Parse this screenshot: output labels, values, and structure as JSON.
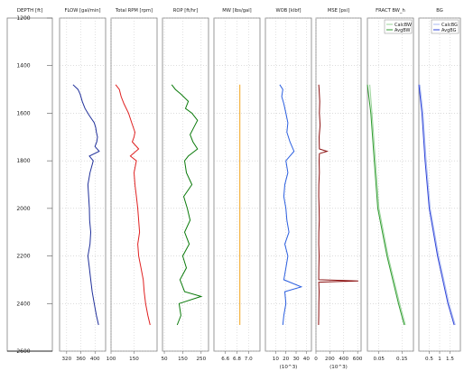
{
  "chart_data": {
    "type": "line",
    "depth_axis": {
      "label": "DEPTH [ft]",
      "range": [
        1200,
        2600
      ],
      "ticks": [
        "1200",
        "1400",
        "1600",
        "1800",
        "2000",
        "2200",
        "2400",
        "2600"
      ],
      "tick_values": [
        1200,
        1400,
        1600,
        1800,
        2000,
        2200,
        2400,
        2600
      ],
      "inverted": true
    },
    "tracks": [
      {
        "title": "FLOW [gal/min]",
        "color": "#1f2f9a",
        "xlim": [
          300,
          430
        ],
        "tick_labels": [
          "320",
          "360",
          "400"
        ],
        "tick_values": [
          320,
          360,
          400
        ],
        "series": [
          {
            "depth": [
              1480,
              1500,
              1520,
              1550,
              1580,
              1610,
              1640,
              1660,
              1680,
              1700,
              1720,
              1740,
              1760,
              1780,
              1800,
              1850,
              1900,
              1950,
              2000,
              2050,
              2100,
              2150,
              2200,
              2250,
              2300,
              2350,
              2400,
              2450,
              2490
            ],
            "values": [
              338,
              352,
              358,
              364,
              372,
              384,
              398,
              402,
              404,
              407,
              405,
              400,
              412,
              384,
              395,
              386,
              380,
              382,
              384,
              385,
              388,
              386,
              380,
              384,
              388,
              392,
              398,
              404,
              410
            ]
          }
        ]
      },
      {
        "title": "Total RPM [rpm]",
        "color": "#e02020",
        "xlim": [
          100,
          200
        ],
        "tick_labels": [
          "100",
          "150"
        ],
        "tick_values": [
          100,
          150
        ],
        "series": [
          {
            "depth": [
              1480,
              1500,
              1530,
              1560,
              1600,
              1640,
              1680,
              1700,
              1720,
              1750,
              1780,
              1800,
              1850,
              1900,
              1950,
              2000,
              2050,
              2100,
              2150,
              2200,
              2250,
              2300,
              2350,
              2400,
              2450,
              2490
            ],
            "values": [
              110,
              118,
              122,
              128,
              138,
              145,
              152,
              150,
              146,
              160,
              142,
              155,
              150,
              152,
              155,
              158,
              160,
              162,
              158,
              160,
              165,
              170,
              172,
              175,
              180,
              185
            ]
          }
        ]
      },
      {
        "title": "ROP [ft/hr]",
        "color": "#0a7a0a",
        "xlim": [
          40,
          290
        ],
        "tick_labels": [
          "50",
          "150",
          "250"
        ],
        "tick_values": [
          50,
          150,
          250
        ],
        "series": [
          {
            "depth": [
              1480,
              1500,
              1520,
              1550,
              1580,
              1600,
              1630,
              1660,
              1690,
              1720,
              1750,
              1780,
              1800,
              1850,
              1900,
              1950,
              2000,
              2050,
              2100,
              2150,
              2200,
              2250,
              2300,
              2350,
              2370,
              2400,
              2450,
              2490
            ],
            "values": [
              90,
              110,
              140,
              180,
              165,
              200,
              230,
              210,
              190,
              205,
              230,
              180,
              160,
              170,
              200,
              155,
              175,
              190,
              160,
              185,
              150,
              170,
              135,
              160,
              250,
              130,
              140,
              120
            ]
          }
        ]
      },
      {
        "title": "MW [lbs/gal]",
        "color": "#f2a31a",
        "xlim": [
          6.4,
          7.2
        ],
        "tick_labels": [
          "6.6",
          "6.8",
          "7.0"
        ],
        "tick_values": [
          6.6,
          6.8,
          7.0
        ],
        "series": [
          {
            "depth": [
              1480,
              2490
            ],
            "values": [
              6.85,
              6.85
            ]
          }
        ]
      },
      {
        "title": "WOB [klbf]",
        "color": "#2b5fe0",
        "xlim": [
          0,
          45
        ],
        "tick_labels": [
          "10",
          "20",
          "30",
          "40"
        ],
        "tick_values": [
          10,
          20,
          30,
          40
        ],
        "sublabel": "(10^3)",
        "series": [
          {
            "depth": [
              1480,
              1500,
              1530,
              1560,
              1600,
              1640,
              1680,
              1720,
              1760,
              1800,
              1850,
              1900,
              1950,
              2000,
              2050,
              2100,
              2150,
              2200,
              2250,
              2300,
              2330,
              2350,
              2400,
              2450,
              2490
            ],
            "values": [
              14,
              17,
              16,
              18,
              20,
              22,
              21,
              24,
              28,
              20,
              22,
              19,
              18,
              20,
              21,
              23,
              19,
              22,
              20,
              18,
              35,
              19,
              20,
              18,
              17
            ]
          }
        ]
      },
      {
        "title": "MSE [psi]",
        "color": "#8b1010",
        "xlim": [
          0,
          650
        ],
        "tick_labels": [
          "0",
          "200",
          "400",
          "600"
        ],
        "tick_values": [
          0,
          200,
          400,
          600
        ],
        "sublabel": "(10^3)",
        "series": [
          {
            "depth": [
              1480,
              1500,
              1550,
              1600,
              1650,
              1700,
              1750,
              1760,
              1770,
              1800,
              1850,
              1900,
              1950,
              2000,
              2050,
              2100,
              2150,
              2200,
              2250,
              2300,
              2305,
              2310,
              2350,
              2400,
              2450,
              2490
            ],
            "values": [
              40,
              45,
              55,
              50,
              60,
              45,
              50,
              160,
              50,
              45,
              50,
              42,
              40,
              45,
              48,
              42,
              40,
              45,
              42,
              40,
              610,
              40,
              45,
              42,
              40,
              38
            ]
          }
        ]
      },
      {
        "title": "FRACT BW_h",
        "xlim": [
          0.0,
          0.2
        ],
        "tick_labels": [
          "0.05",
          "0.15"
        ],
        "tick_values": [
          0.05,
          0.15
        ],
        "legend": {
          "position": "top-right",
          "entries": [
            "CalcBW",
            "AvgBW"
          ]
        },
        "series": [
          {
            "name": "CalcBW",
            "color": "#9ad49a",
            "depth": [
              1480,
              1600,
              1800,
              2000,
              2200,
              2400,
              2490
            ],
            "values": [
              0.01,
              0.02,
              0.035,
              0.05,
              0.09,
              0.14,
              0.165
            ]
          },
          {
            "name": "AvgBW",
            "color": "#2e9a2e",
            "depth": [
              1480,
              1600,
              1800,
              2000,
              2200,
              2400,
              2490
            ],
            "values": [
              0.0,
              0.015,
              0.03,
              0.045,
              0.085,
              0.135,
              0.16
            ]
          }
        ]
      },
      {
        "title": "BG",
        "xlim": [
          0.0,
          2.0
        ],
        "tick_labels": [
          "0.5",
          "1",
          "1.5"
        ],
        "tick_values": [
          0.5,
          1.0,
          1.5
        ],
        "legend": {
          "position": "top-right",
          "entries": [
            "CalcBG",
            "AvgBG"
          ]
        },
        "series": [
          {
            "name": "CalcBG",
            "color": "#a8b8f0",
            "depth": [
              1480,
              1600,
              1800,
              2000,
              2200,
              2400,
              2490
            ],
            "values": [
              0.05,
              0.2,
              0.35,
              0.55,
              0.95,
              1.45,
              1.75
            ]
          },
          {
            "name": "AvgBG",
            "color": "#2b40d8",
            "depth": [
              1480,
              1600,
              1800,
              2000,
              2200,
              2400,
              2490
            ],
            "values": [
              0.0,
              0.15,
              0.3,
              0.5,
              0.9,
              1.4,
              1.7
            ]
          }
        ]
      }
    ]
  }
}
